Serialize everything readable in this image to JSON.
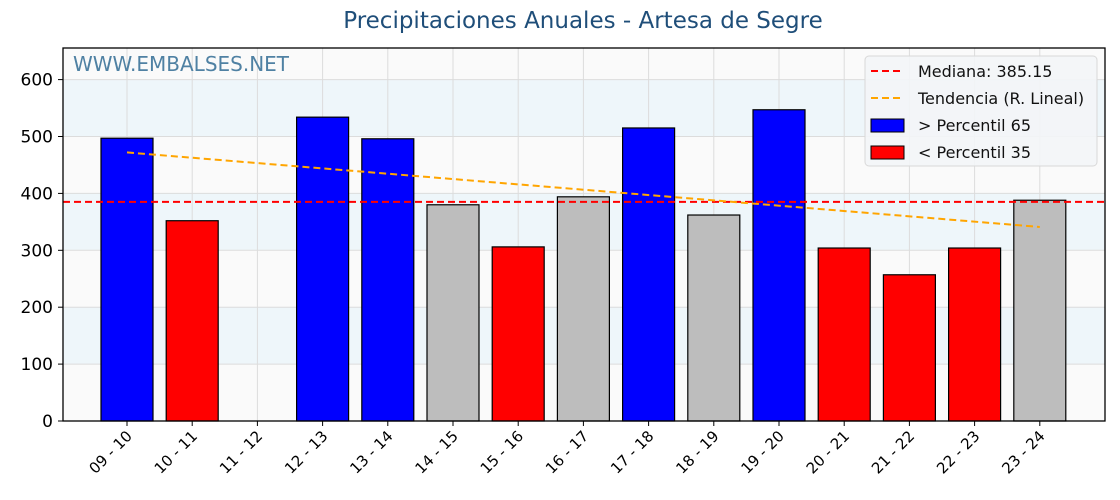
{
  "chart_data": {
    "type": "bar",
    "title": "Precipitaciones Anuales - Artesa de Segre",
    "watermark": "WWW.EMBALSES.NET",
    "xlabel": "",
    "ylabel": "",
    "ylim": [
      0,
      655
    ],
    "yticks": [
      0,
      100,
      200,
      300,
      400,
      500,
      600
    ],
    "grid": true,
    "legend_position": "upper right",
    "categories": [
      "09 - 10",
      "10 - 11",
      "11 - 12",
      "12 - 13",
      "13 - 14",
      "14 - 15",
      "15 - 16",
      "16 - 17",
      "17 - 18",
      "18 - 19",
      "19 - 20",
      "20 - 21",
      "21 - 22",
      "22 - 23",
      "23 - 24"
    ],
    "values": [
      497,
      352,
      0,
      534,
      496,
      380,
      306,
      394,
      515,
      362,
      547,
      304,
      257,
      304,
      388
    ],
    "bar_classes": [
      "high",
      "low",
      "none",
      "high",
      "high",
      "mid",
      "low",
      "mid",
      "high",
      "mid",
      "high",
      "low",
      "low",
      "low",
      "mid"
    ],
    "median": 385.15,
    "trend": {
      "start": 472,
      "end": 341
    },
    "legend": [
      {
        "label": "Mediana: 385.15",
        "type": "dashed-line",
        "color": "#ff0000"
      },
      {
        "label": "Tendencia (R. Lineal)",
        "type": "dashed-line",
        "color": "#ffa500"
      },
      {
        "label": " > Percentil 65",
        "type": "patch",
        "color": "#0000ff"
      },
      {
        "label": " < Percentil 35",
        "type": "patch",
        "color": "#ff0000"
      }
    ],
    "colors": {
      "high": "#0000ff",
      "low": "#ff0000",
      "mid": "#bdbdbd",
      "median": "#ff0000",
      "trend": "#ffa500"
    }
  }
}
